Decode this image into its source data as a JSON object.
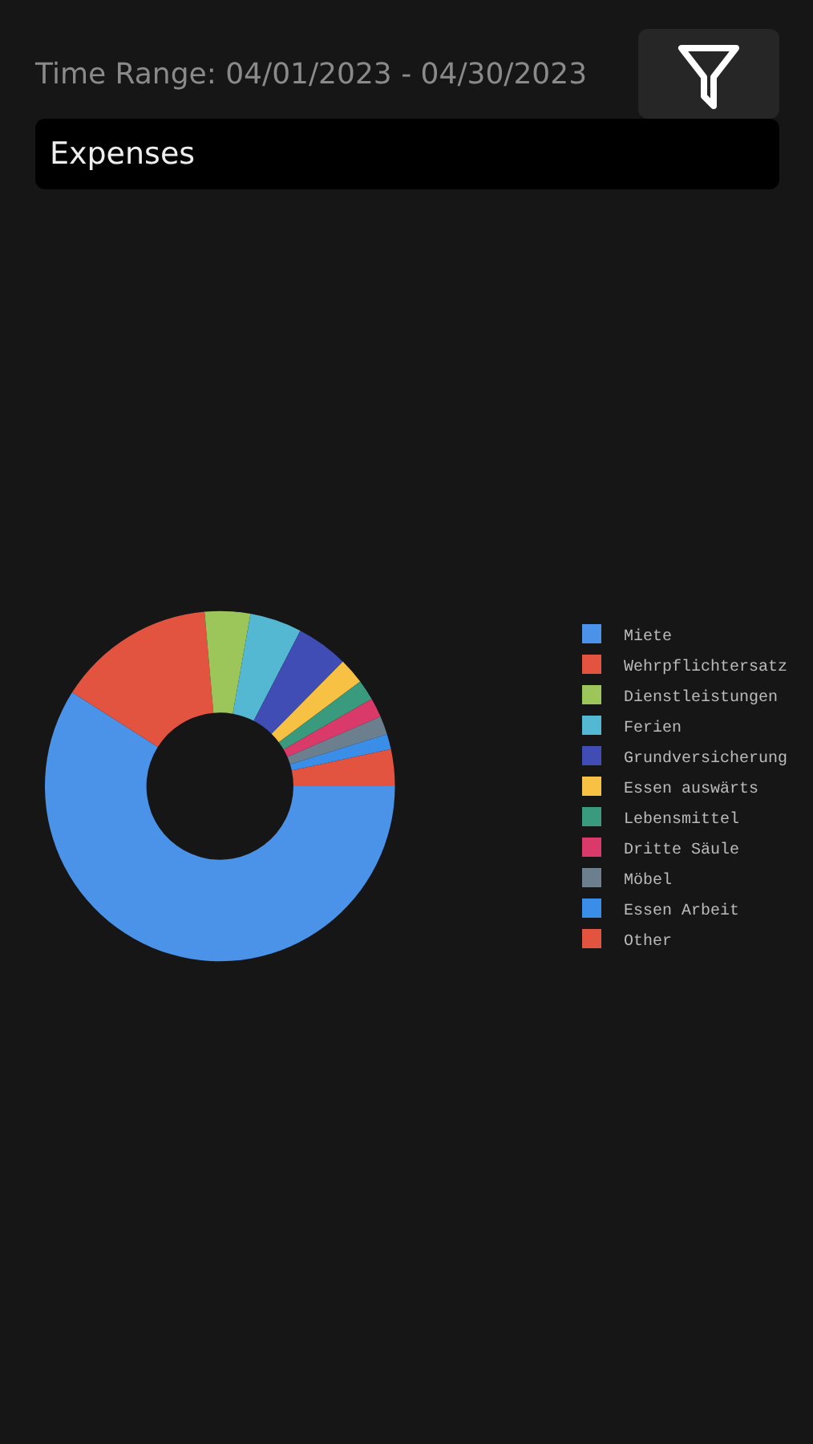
{
  "chart_data": {
    "type": "donut",
    "subtitle": "Time Range: 04/01/2023 - 04/30/2023",
    "annotations": [
      "Expenses"
    ],
    "categories": [
      "Miete",
      "Wehrpflichtersatz",
      "Dienstleistungen",
      "Ferien",
      "Grundversicherung",
      "Essen auswärts",
      "Lebensmittel",
      "Dritte Säule",
      "Möbel",
      "Essen Arbeit",
      "Other"
    ],
    "values": [
      59,
      14.6,
      4.2,
      4.8,
      4.8,
      2.4,
      1.9,
      1.8,
      1.7,
      1.4,
      3.4
    ],
    "colors": [
      "#4a93e8",
      "#e2543f",
      "#9cc55a",
      "#55b8d3",
      "#3f4db5",
      "#f7c244",
      "#3a9a7e",
      "#d93a6a",
      "#6c7f8f",
      "#3b8ee8",
      "#e2543f"
    ],
    "legend": "right"
  }
}
